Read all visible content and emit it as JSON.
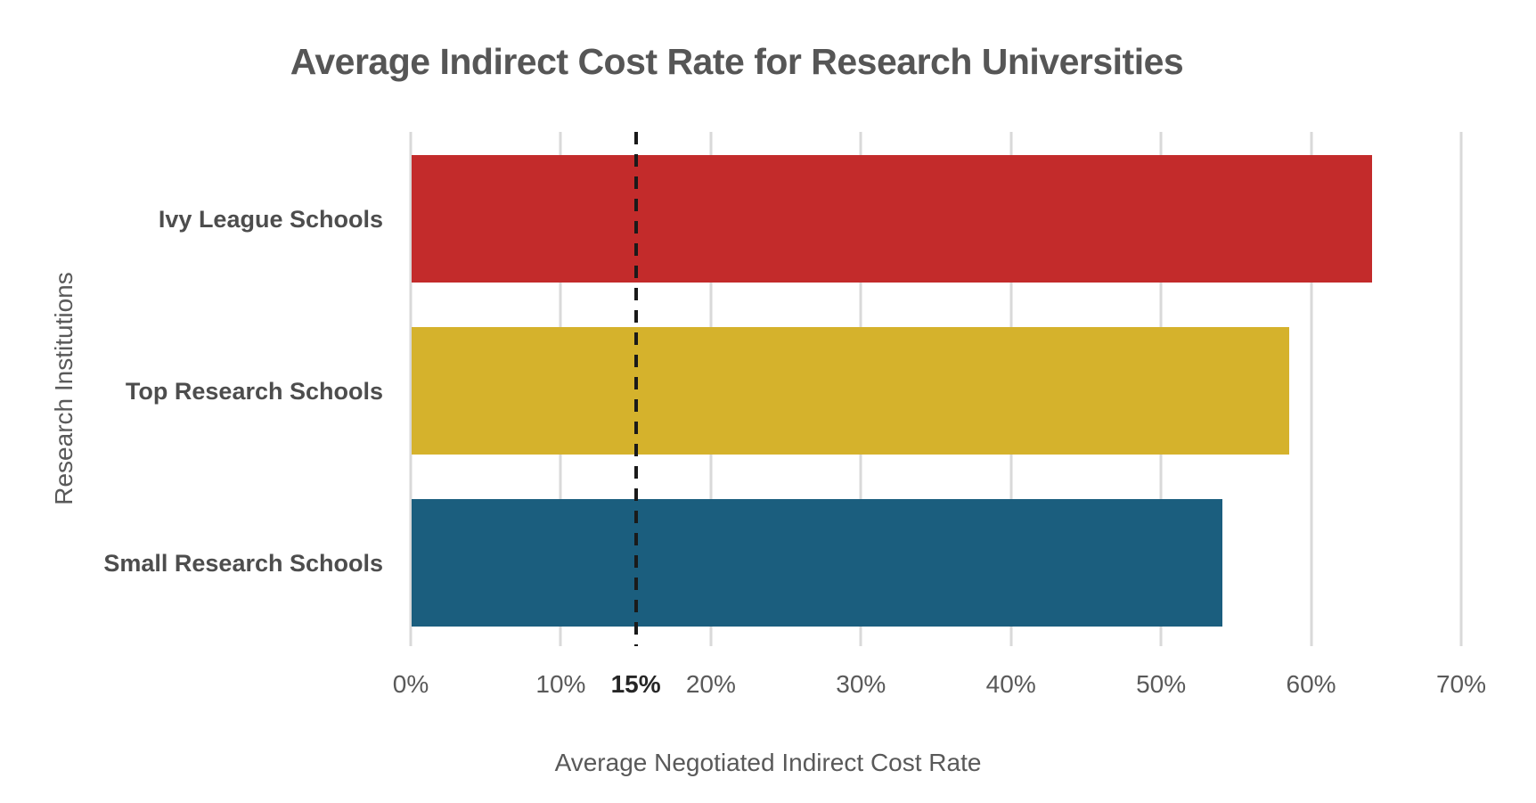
{
  "chart_data": {
    "type": "bar",
    "orientation": "horizontal",
    "title": "Average Indirect Cost Rate for Research Universities",
    "xlabel": "Average Negotiated Indirect Cost Rate",
    "ylabel": "Research Institutions",
    "categories": [
      "Ivy League Schools",
      "Top Research Schools",
      "Small Research Schools"
    ],
    "values": [
      64,
      58.5,
      54
    ],
    "value_unit": "%",
    "bar_colors": [
      "#c32b2b",
      "#d5b22c",
      "#1b5e7e"
    ],
    "xlim": [
      0,
      70
    ],
    "x_ticks": [
      0,
      10,
      20,
      30,
      40,
      50,
      60,
      70
    ],
    "x_tick_labels": [
      "0%",
      "10%",
      "20%",
      "30%",
      "40%",
      "50%",
      "60%",
      "70%"
    ],
    "reference_line": {
      "value": 15,
      "label": "15%",
      "style": "dashed",
      "color": "#1a1a1a"
    },
    "grid": true,
    "gridline_color": "#d9d9d9",
    "legend_position": "none",
    "title_color": "#565656",
    "text_color": "#595959"
  }
}
